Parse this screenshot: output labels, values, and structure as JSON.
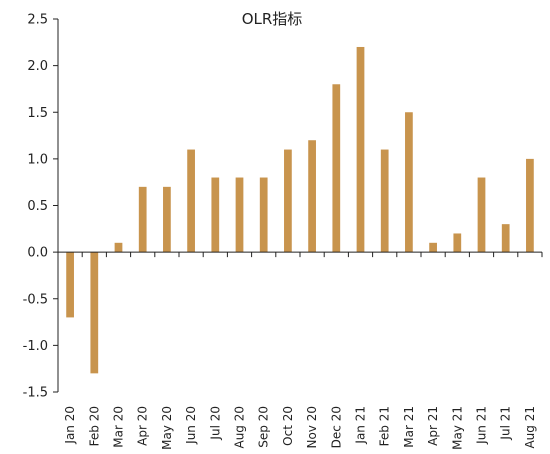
{
  "chart_data": {
    "type": "bar",
    "title": "OLR指标",
    "xlabel": "",
    "ylabel": "",
    "categories": [
      "Jan 20",
      "Feb 20",
      "Mar 20",
      "Apr 20",
      "May 20",
      "Jun 20",
      "Jul 20",
      "Aug 20",
      "Sep 20",
      "Oct 20",
      "Nov 20",
      "Dec 20",
      "Jan 21",
      "Feb 21",
      "Mar 21",
      "Apr 21",
      "May 21",
      "Jun 21",
      "Jul 21",
      "Aug 21"
    ],
    "values": [
      -0.7,
      -1.3,
      0.1,
      0.7,
      0.7,
      1.1,
      0.8,
      0.8,
      0.8,
      1.1,
      1.2,
      1.8,
      2.2,
      1.1,
      1.5,
      0.1,
      0.2,
      0.8,
      0.3,
      1.0
    ],
    "ylim": [
      -1.5,
      2.5
    ],
    "yticks": [
      "2.5",
      "2.0",
      "1.5",
      "1.0",
      "0.5",
      "0.0",
      "-0.5",
      "-1.0",
      "-1.5"
    ],
    "grid": false,
    "legend": "none",
    "bar_color": "#C8944D",
    "axis_color": "#222222"
  }
}
